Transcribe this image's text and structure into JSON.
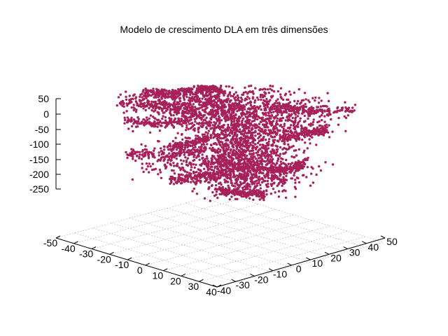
{
  "chart_data": {
    "type": "scatter",
    "title": "Modelo de crescimento DLA em três dimensões",
    "marker_color": "#a8205a",
    "x_axis": {
      "range": [
        -50,
        40
      ],
      "ticks": [
        "-50",
        "-40",
        "-30",
        "-20",
        "-10",
        "0",
        "10",
        "20",
        "30",
        "40"
      ]
    },
    "y_axis": {
      "range": [
        -40,
        50
      ],
      "ticks": [
        "-40",
        "-30",
        "-20",
        "-10",
        "0",
        "10",
        "20",
        "30",
        "40",
        "50"
      ]
    },
    "z_axis": {
      "range": [
        -250,
        50
      ],
      "ticks": [
        "50",
        "0",
        "-50",
        "-100",
        "-150",
        "-200",
        "-250"
      ]
    },
    "grid": true,
    "cluster": {
      "description": "",
      "approx_point_count": 4000,
      "z_extent": [
        -270,
        60
      ]
    }
  }
}
